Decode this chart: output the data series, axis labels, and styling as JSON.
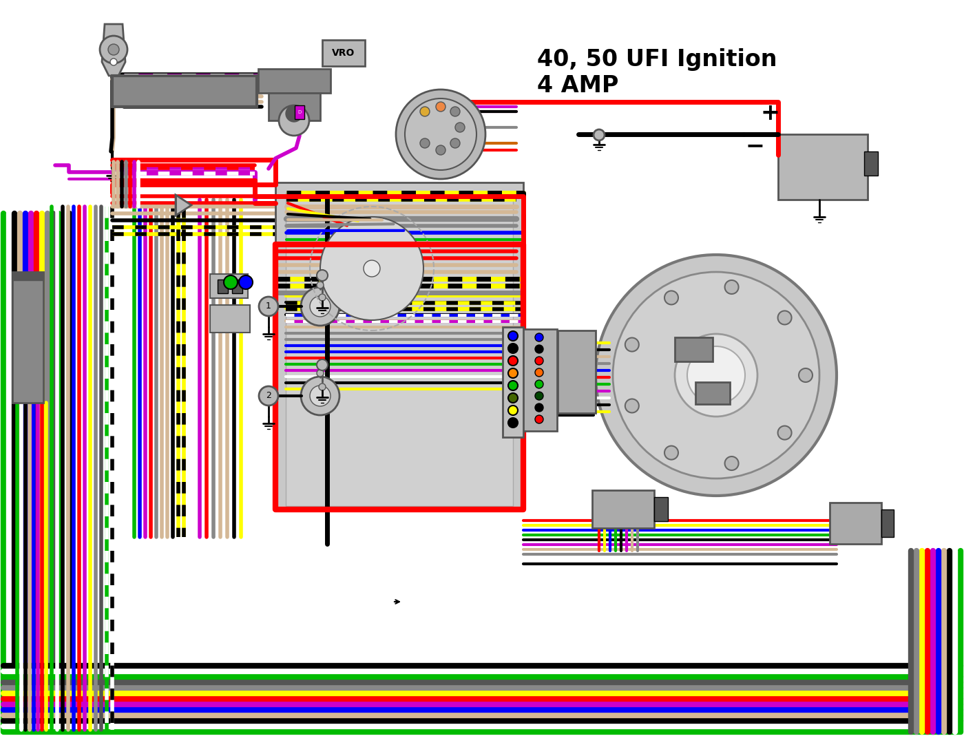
{
  "title1": "40, 50 UFI Ignition",
  "title2": "4 AMP",
  "bg": "#ffffff",
  "R": "#ff0000",
  "BLK": "#000000",
  "YEL": "#ffff00",
  "TAN": "#d4b896",
  "GRY": "#888888",
  "PUR": "#cc00cc",
  "BLU": "#0000ff",
  "GRN": "#00bb00",
  "WHT": "#ffffff",
  "LTGRY": "#b8b8b8",
  "DKGRY": "#555555",
  "MDGRY": "#999999"
}
